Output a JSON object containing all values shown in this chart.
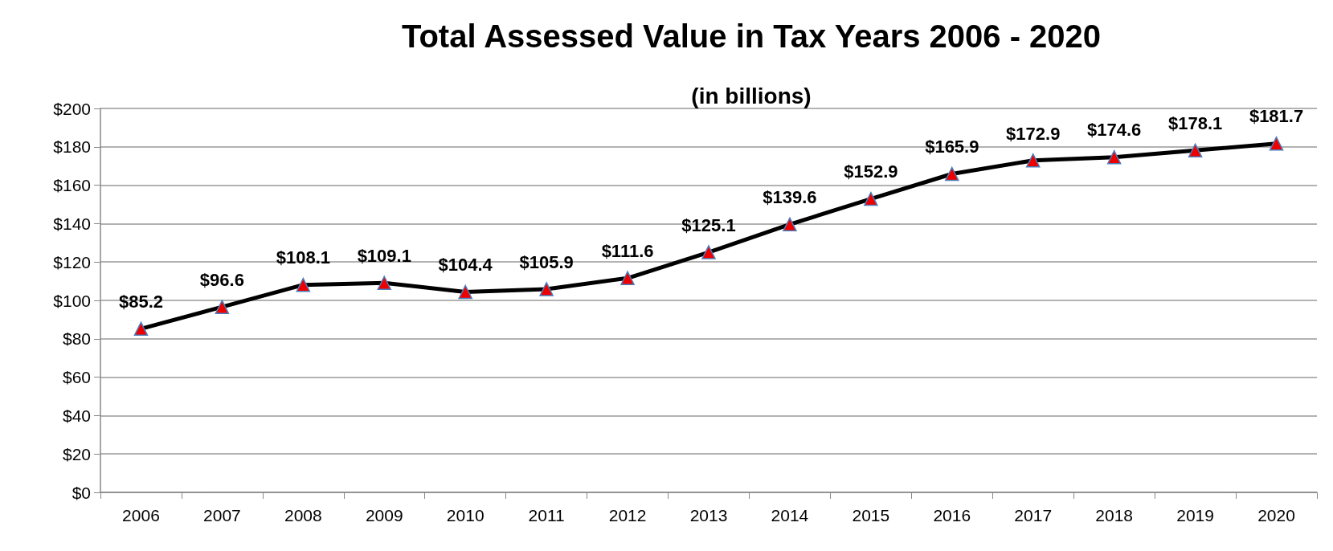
{
  "chart_data": {
    "type": "line",
    "title": "Total Assessed Value in Tax Years 2006 - 2020",
    "subtitle": "(in billions)",
    "categories": [
      "2006",
      "2007",
      "2008",
      "2009",
      "2010",
      "2011",
      "2012",
      "2013",
      "2014",
      "2015",
      "2016",
      "2017",
      "2018",
      "2019",
      "2020"
    ],
    "series": [
      {
        "color": "#000000",
        "values": [
          85.2,
          96.6,
          108.1,
          109.1,
          104.4,
          105.9,
          111.6,
          125.1,
          139.6,
          152.9,
          165.9,
          172.9,
          174.6,
          178.1,
          181.7
        ],
        "value_labels": [
          "$85.2",
          "$96.6",
          "$108.1",
          "$109.1",
          "$104.4",
          "$105.9",
          "$111.6",
          "$125.1",
          "$139.6",
          "$152.9",
          "$165.9",
          "$172.9",
          "$174.6",
          "$178.1",
          "$181.7"
        ]
      }
    ],
    "ylim": [
      0,
      200
    ],
    "yticks": [
      {
        "value": 0,
        "label": "$0"
      },
      {
        "value": 20,
        "label": "$20"
      },
      {
        "value": 40,
        "label": "$40"
      },
      {
        "value": 60,
        "label": "$60"
      },
      {
        "value": 80,
        "label": "$80"
      },
      {
        "value": 100,
        "label": "$100"
      },
      {
        "value": 120,
        "label": "$120"
      },
      {
        "value": 140,
        "label": "$140"
      },
      {
        "value": 160,
        "label": "$160"
      },
      {
        "value": 180,
        "label": "$180"
      },
      {
        "value": 200,
        "label": "$200"
      }
    ],
    "grid": "y",
    "marker": "triangle",
    "line_style": "solid"
  }
}
